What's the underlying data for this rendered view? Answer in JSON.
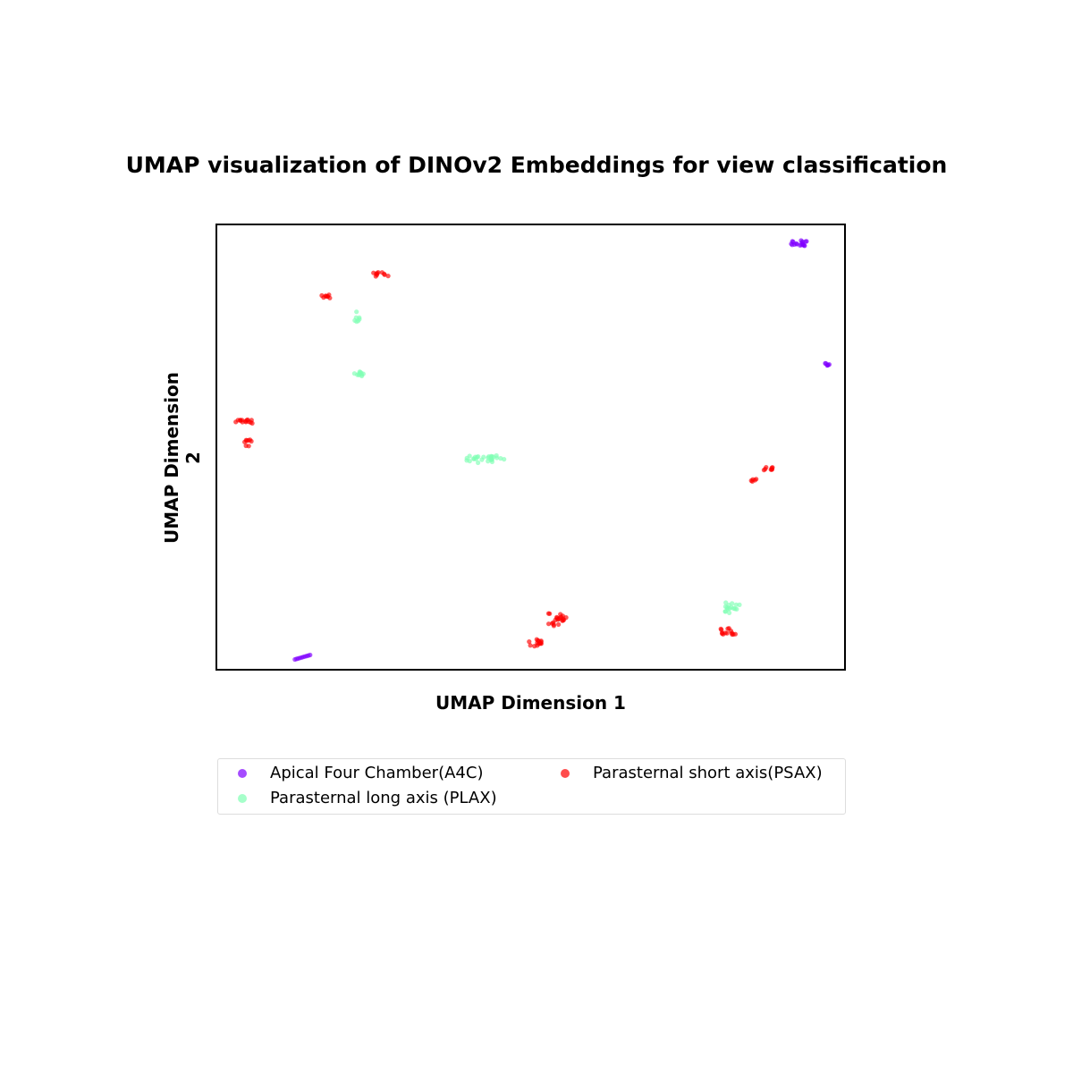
{
  "chart_data": {
    "type": "scatter",
    "title": "UMAP visualization of DINOv2 Embeddings for view classification",
    "xlabel": "UMAP Dimension 1",
    "ylabel": "UMAP Dimension 2",
    "xlim": [
      0,
      100
    ],
    "ylim": [
      0,
      100
    ],
    "legend_placement": "bottom",
    "series": [
      {
        "name": "Apical Four Chamber(A4C)",
        "color": "#7f00ff",
        "clusters": [
          {
            "cx": 92.5,
            "cy": 95.5,
            "spread_x": 1.5,
            "spread_y": 0.7,
            "n": 18
          },
          {
            "cx": 96.8,
            "cy": 68.5,
            "spread_x": 0.6,
            "spread_y": 0.3,
            "n": 6
          },
          {
            "cx": 13.8,
            "cy": 3.0,
            "spread_x": 1.2,
            "spread_y": 0.5,
            "n": 10,
            "line": true
          }
        ]
      },
      {
        "name": "Parasternal long axis (PLAX)",
        "color": "#80ffb4",
        "clusters": [
          {
            "cx": 22.5,
            "cy": 79.2,
            "spread_x": 0.8,
            "spread_y": 1.2,
            "n": 7
          },
          {
            "cx": 22.9,
            "cy": 66.4,
            "spread_x": 0.9,
            "spread_y": 0.5,
            "n": 10
          },
          {
            "cx": 42.8,
            "cy": 47.3,
            "spread_x": 3.0,
            "spread_y": 0.8,
            "n": 28
          },
          {
            "cx": 81.9,
            "cy": 14.2,
            "spread_x": 1.3,
            "spread_y": 1.3,
            "n": 16
          }
        ]
      },
      {
        "name": "Parasternal short axis(PSAX)",
        "color": "#ff0000",
        "clusters": [
          {
            "cx": 26.2,
            "cy": 88.5,
            "spread_x": 1.4,
            "spread_y": 0.6,
            "n": 10
          },
          {
            "cx": 17.6,
            "cy": 83.9,
            "spread_x": 1.0,
            "spread_y": 0.6,
            "n": 8
          },
          {
            "cx": 4.5,
            "cy": 55.7,
            "spread_x": 1.4,
            "spread_y": 0.4,
            "n": 14
          },
          {
            "cx": 5.2,
            "cy": 50.9,
            "spread_x": 0.6,
            "spread_y": 0.8,
            "n": 8
          },
          {
            "cx": 87.7,
            "cy": 45.2,
            "spread_x": 1.0,
            "spread_y": 0.4,
            "n": 8
          },
          {
            "cx": 85.6,
            "cy": 42.6,
            "spread_x": 0.7,
            "spread_y": 0.3,
            "n": 5
          },
          {
            "cx": 54.2,
            "cy": 11.4,
            "spread_x": 1.5,
            "spread_y": 1.4,
            "n": 22
          },
          {
            "cx": 50.7,
            "cy": 6.2,
            "spread_x": 1.0,
            "spread_y": 0.8,
            "n": 14
          },
          {
            "cx": 81.5,
            "cy": 8.8,
            "spread_x": 1.4,
            "spread_y": 0.8,
            "n": 14
          }
        ]
      }
    ]
  }
}
